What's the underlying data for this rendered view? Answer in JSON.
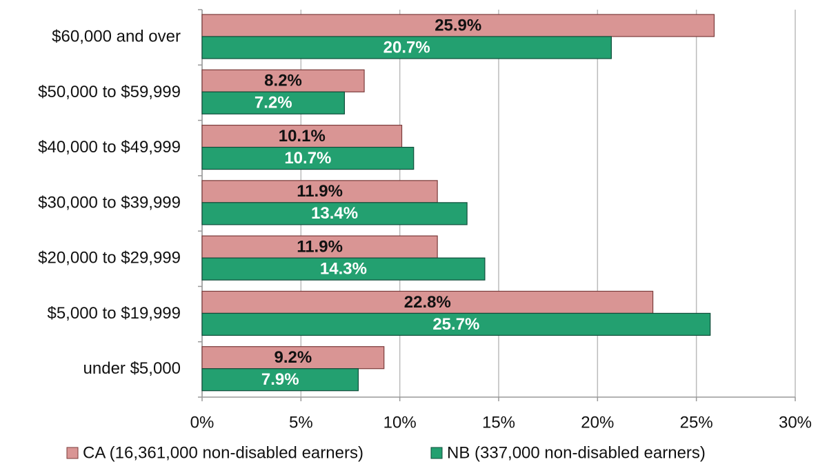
{
  "chart_data": {
    "type": "bar",
    "orientation": "horizontal",
    "categories": [
      "$60,000 and over",
      "$50,000 to $59,999",
      "$40,000 to $49,999",
      "$30,000 to $39,999",
      "$20,000 to $29,999",
      "$5,000 to $19,999",
      "under $5,000"
    ],
    "series": [
      {
        "name": "CA (16,361,000 non-disabled earners)",
        "color": "#d99594",
        "values": [
          25.9,
          8.2,
          10.1,
          11.9,
          11.9,
          22.8,
          9.2
        ],
        "value_labels": [
          "25.9%",
          "8.2%",
          "10.1%",
          "11.9%",
          "11.9%",
          "22.8%",
          "9.2%"
        ]
      },
      {
        "name": "NB (337,000 non-disabled earners)",
        "color": "#23a070",
        "values": [
          20.7,
          7.2,
          10.7,
          13.4,
          14.3,
          25.7,
          7.9
        ],
        "value_labels": [
          "20.7%",
          "7.2%",
          "10.7%",
          "13.4%",
          "14.3%",
          "25.7%",
          "7.9%"
        ]
      }
    ],
    "xlim": [
      0,
      30
    ],
    "xticks": [
      {
        "value": 0,
        "label": "0%"
      },
      {
        "value": 5,
        "label": "5%"
      },
      {
        "value": 10,
        "label": "10%"
      },
      {
        "value": 15,
        "label": "15%"
      },
      {
        "value": 20,
        "label": "20%"
      },
      {
        "value": 25,
        "label": "25%"
      },
      {
        "value": 30,
        "label": "30%"
      }
    ],
    "grid": true,
    "legend": "bottom"
  }
}
